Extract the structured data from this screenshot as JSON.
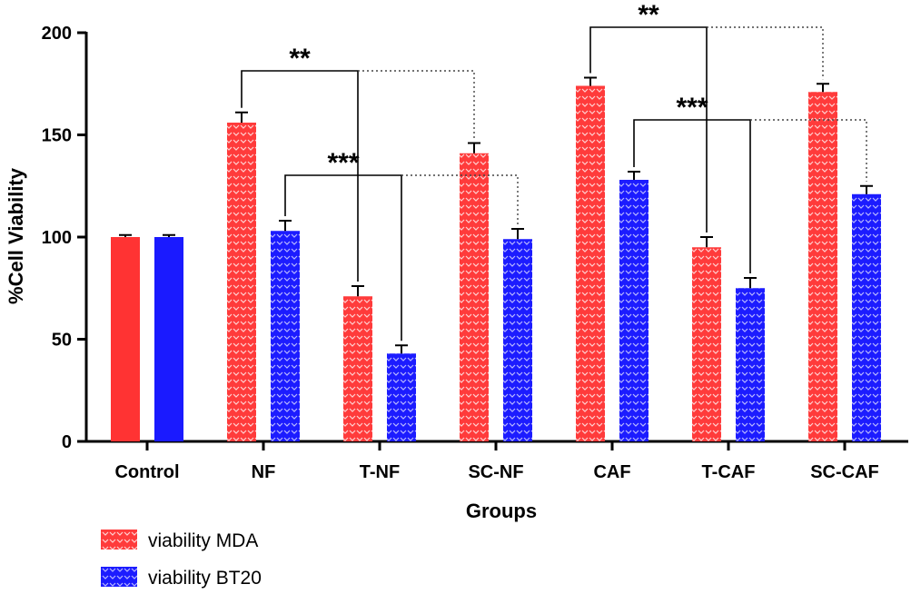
{
  "chart_data": {
    "type": "bar",
    "xlabel": "Groups",
    "ylabel": "%Cell Viability",
    "ylim": [
      0,
      200
    ],
    "yticks": [
      0,
      50,
      100,
      150,
      200
    ],
    "categories": [
      "Control",
      "NF",
      "T-NF",
      "SC-NF",
      "CAF",
      "T-CAF",
      "SC-CAF"
    ],
    "series": [
      {
        "name": "viability MDA",
        "color": "#ff3333",
        "values": [
          100,
          156,
          71,
          141,
          174,
          95,
          171
        ],
        "errors": [
          1,
          5,
          5,
          5,
          4,
          5,
          4
        ]
      },
      {
        "name": "viability BT20",
        "color": "#1a1aff",
        "values": [
          100,
          103,
          43,
          99,
          128,
          75,
          121
        ],
        "errors": [
          1,
          5,
          4,
          5,
          4,
          5,
          4
        ]
      }
    ],
    "grid": false,
    "legend_position": "bottom-left",
    "significance": [
      {
        "label": "**",
        "from": "NF MDA",
        "to": "T-NF MDA",
        "dotted_to": "SC-NF MDA"
      },
      {
        "label": "***",
        "from": "NF BT20",
        "to": "T-NF BT20",
        "dotted_to": "SC-NF BT20"
      },
      {
        "label": "**",
        "from": "CAF MDA",
        "to": "T-CAF MDA",
        "dotted_to": "SC-CAF MDA"
      },
      {
        "label": "***",
        "from": "CAF BT20",
        "to": "T-CAF BT20",
        "dotted_to": "SC-CAF BT20"
      }
    ]
  }
}
